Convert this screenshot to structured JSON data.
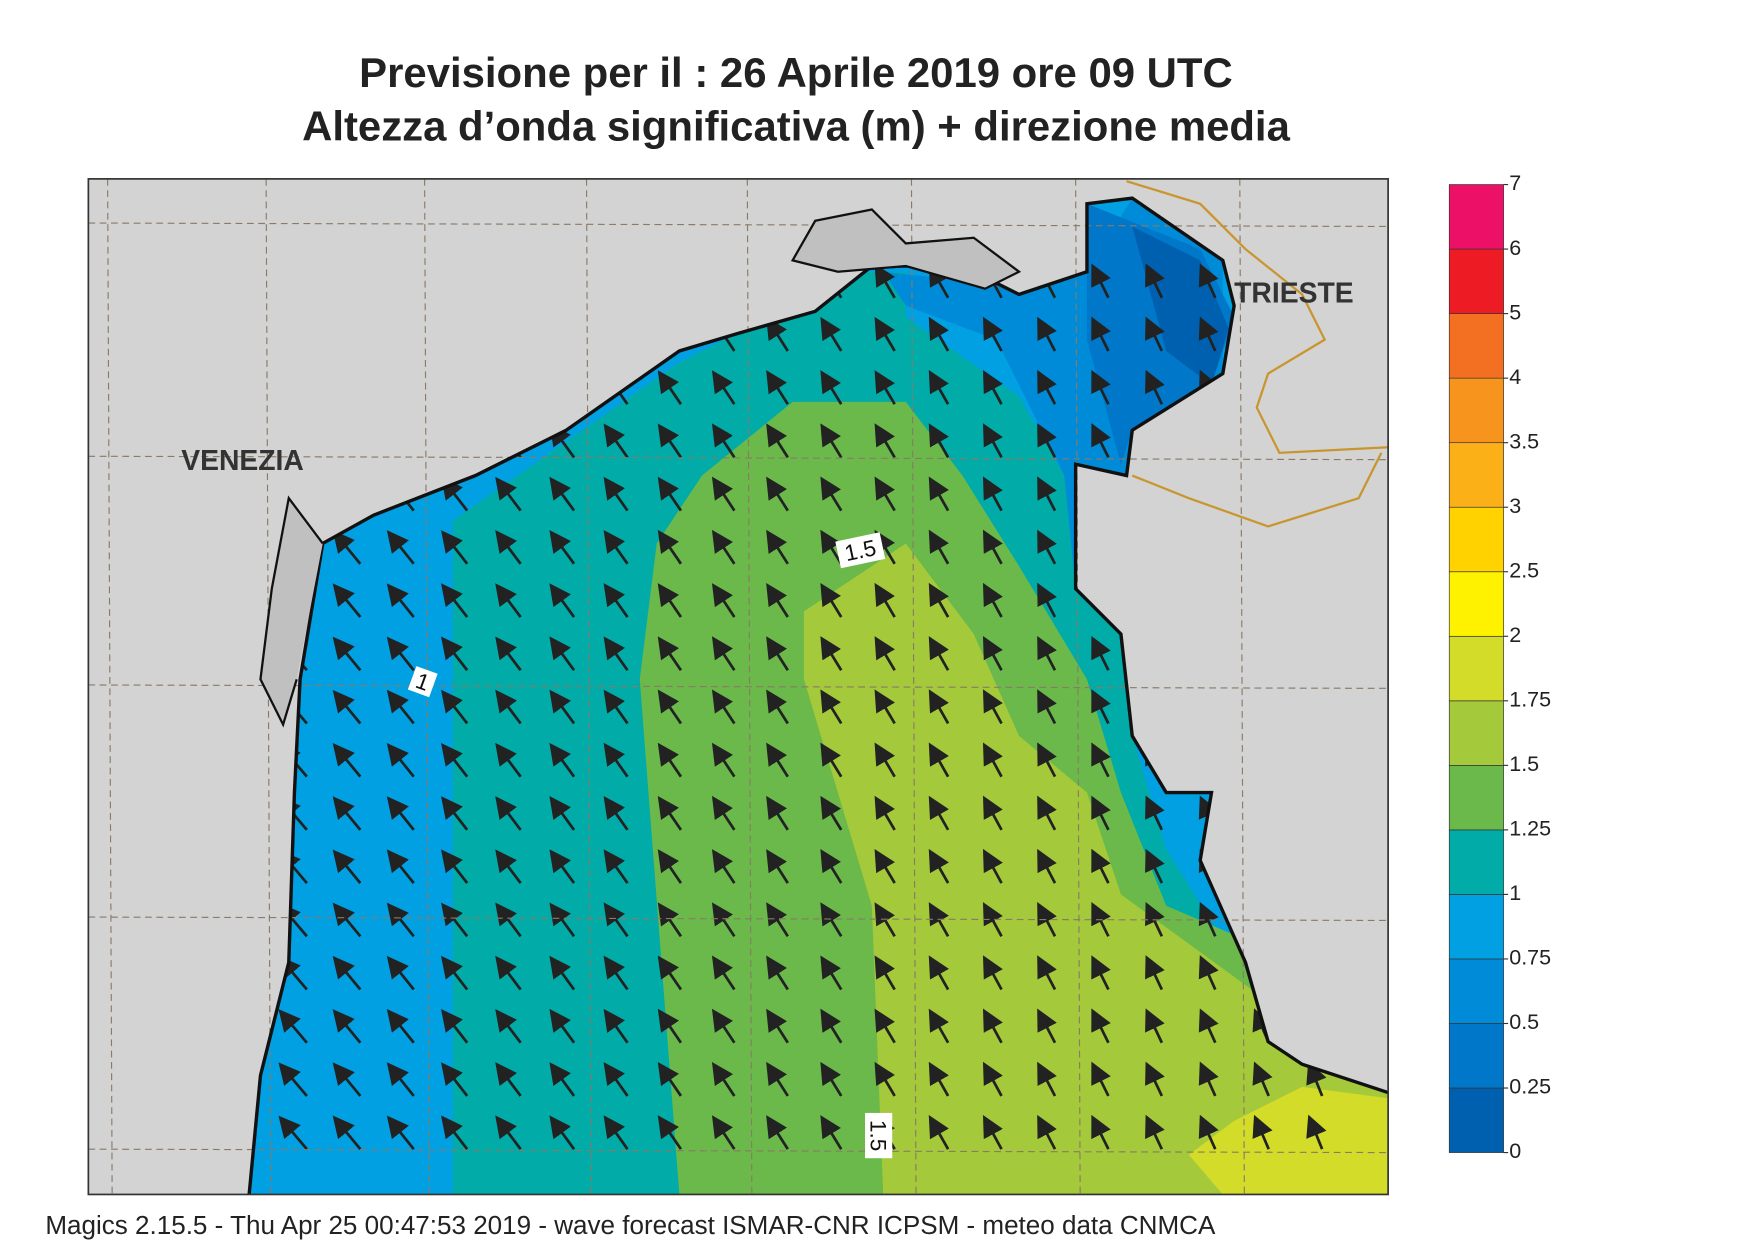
{
  "header": {
    "title": [
      "Previsione per il  :  26   Aprile  2019   ore 09 UTC",
      "Altezza d’onda significativa (m) + direzione media"
    ]
  },
  "map": {
    "place_labels": [
      "VENEZIA",
      "TRIESTE"
    ],
    "contour_labels": [
      "1.5",
      "1.5",
      "1"
    ]
  },
  "colorbar": {
    "levels": [
      0,
      0.25,
      0.5,
      0.75,
      1,
      1.25,
      1.5,
      1.75,
      2,
      2.5,
      3,
      3.5,
      4,
      5,
      6,
      7
    ],
    "colors": [
      "#0060b0",
      "#0077c8",
      "#008bd8",
      "#00a0e3",
      "#00aba8",
      "#6ab94a",
      "#a4c93a",
      "#d4dc2a",
      "#fff200",
      "#ffd200",
      "#fbb017",
      "#f7941d",
      "#f36f21",
      "#ed1c24",
      "#ec1067"
    ]
  },
  "footer": "Magics 2.15.5 - Thu Apr 25 00:47:53 2019 - wave forecast  ISMAR-CNR  ICPSM - meteo data   CNMCA"
}
